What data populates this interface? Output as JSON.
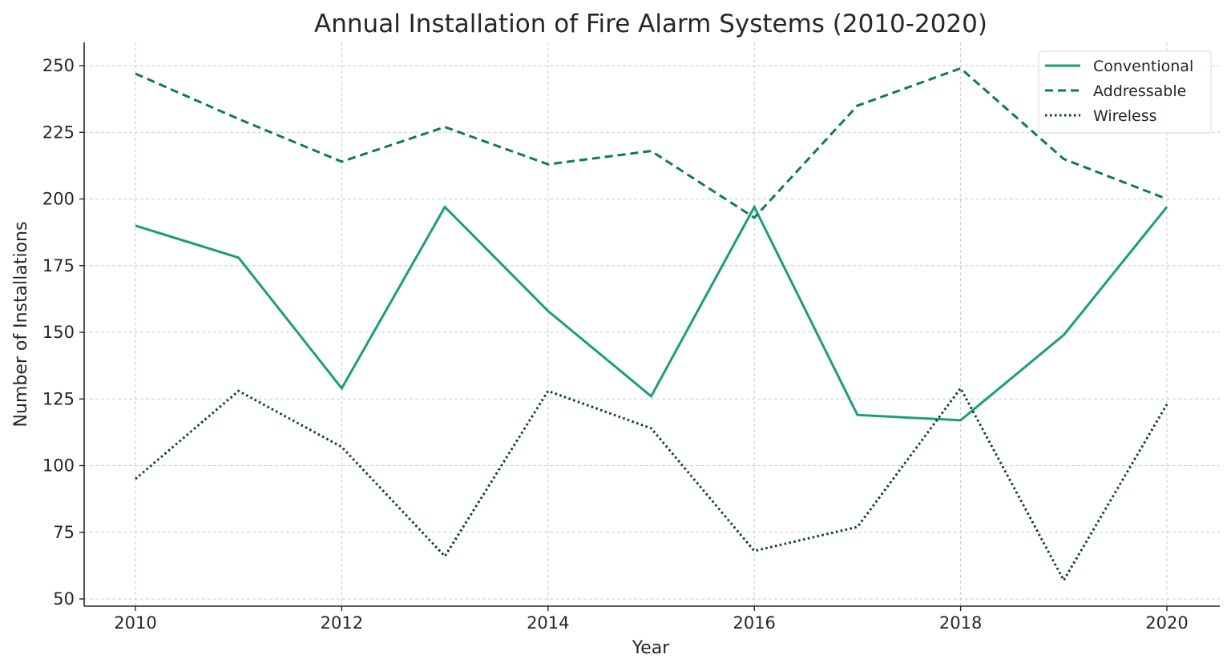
{
  "chart_data": {
    "type": "line",
    "title": "Annual Installation of Fire Alarm Systems (2010-2020)",
    "xlabel": "Year",
    "ylabel": "Number of Installations",
    "x": [
      2010,
      2011,
      2012,
      2013,
      2014,
      2015,
      2016,
      2017,
      2018,
      2019,
      2020
    ],
    "x_ticks": [
      2010,
      2012,
      2014,
      2016,
      2018,
      2020
    ],
    "y_ticks": [
      50,
      75,
      100,
      125,
      150,
      175,
      200,
      225,
      250
    ],
    "xlim": [
      2009.5,
      2020.5
    ],
    "ylim": [
      48.5,
      259
    ],
    "grid": true,
    "legend_position": "upper right",
    "series": [
      {
        "name": "Conventional",
        "style": "solid",
        "color": "#1b9e77",
        "values": [
          190,
          178,
          129,
          197,
          158,
          126,
          197,
          119,
          117,
          149,
          197
        ]
      },
      {
        "name": "Addressable",
        "style": "dashed",
        "color": "#0f7a5a",
        "values": [
          247,
          230,
          214,
          227,
          213,
          218,
          193,
          235,
          249,
          215,
          200
        ]
      },
      {
        "name": "Wireless",
        "style": "dotted",
        "color": "#0b3d2e",
        "values": [
          95,
          128,
          107,
          66,
          128,
          114,
          68,
          77,
          129,
          57,
          123
        ]
      }
    ]
  }
}
